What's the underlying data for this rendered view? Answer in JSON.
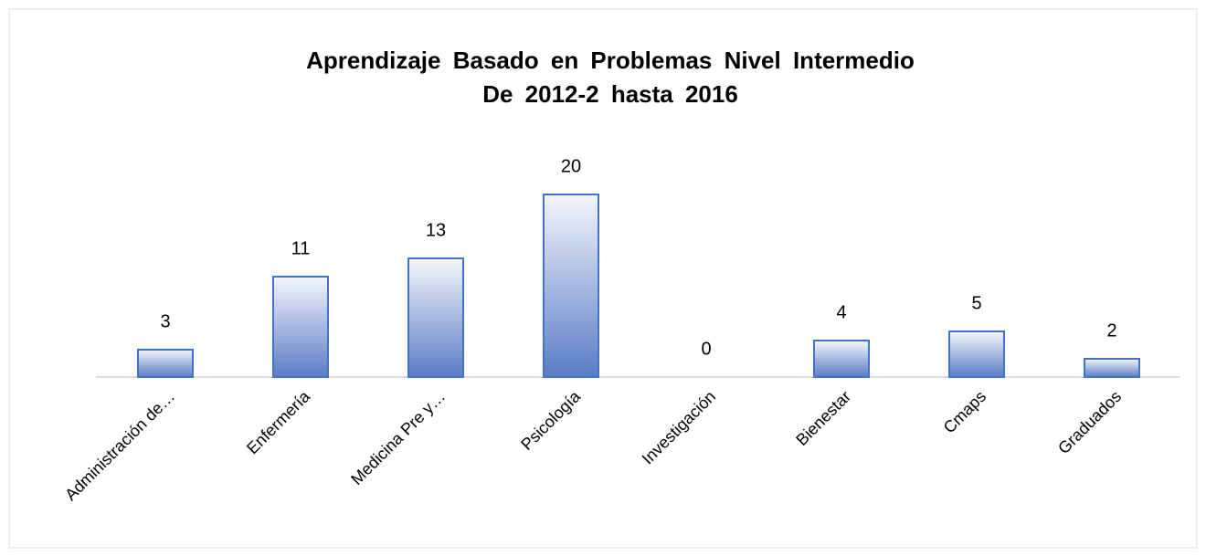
{
  "chart_data": {
    "type": "bar",
    "title": [
      "Aprendizaje Basado en Problemas Nivel Intermedio",
      "De 2012-2 hasta 2016"
    ],
    "categories": [
      "Administración de…",
      "Enfermería",
      "Medicina Pre y…",
      "Psicología",
      "Investigación",
      "Bienestar",
      "Cmaps",
      "Graduados"
    ],
    "values": [
      3,
      11,
      13,
      20,
      0,
      4,
      5,
      2
    ],
    "color": "#4472c4",
    "grid": false
  }
}
